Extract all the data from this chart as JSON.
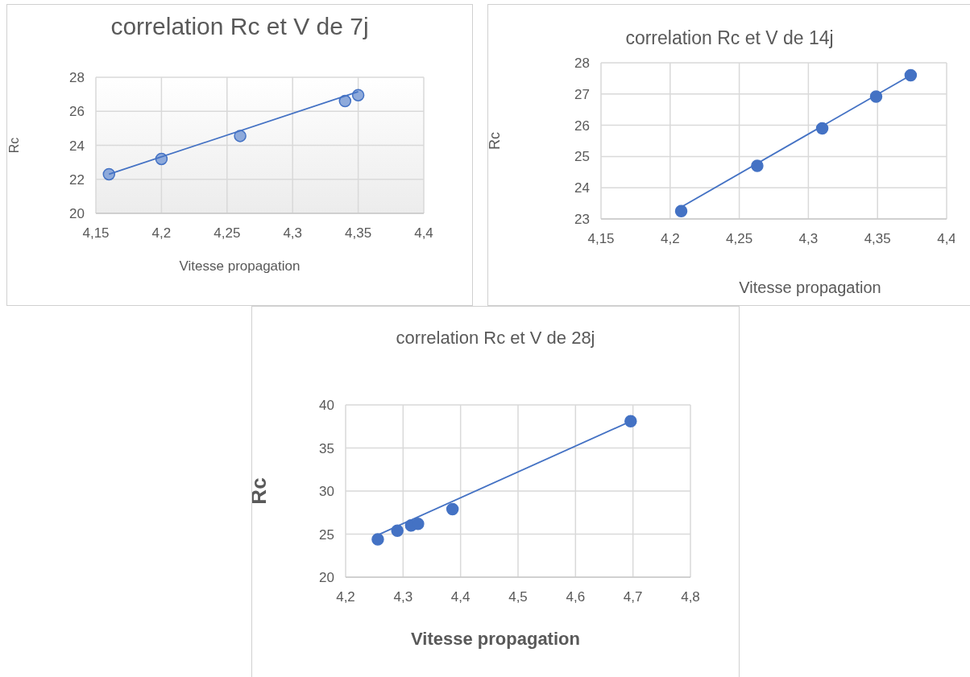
{
  "chart_data": [
    {
      "type": "scatter",
      "title": "correlation Rc et V de 7j",
      "xlabel": "Vitesse propagation",
      "ylabel": "Rc",
      "xlim": [
        4.15,
        4.4
      ],
      "xticks": [
        {
          "value": 4.15,
          "label": "4,15"
        },
        {
          "value": 4.2,
          "label": "4,2"
        },
        {
          "value": 4.25,
          "label": "4,25"
        },
        {
          "value": 4.3,
          "label": "4,3"
        },
        {
          "value": 4.35,
          "label": "4,35"
        },
        {
          "value": 4.4,
          "label": "4,4"
        }
      ],
      "ylim": [
        20,
        28
      ],
      "yticks": [
        20,
        22,
        24,
        26,
        28
      ],
      "grid": true,
      "series": [
        {
          "marker": "circle",
          "color": "#8eaadb",
          "x": [
            4.16,
            4.2,
            4.26,
            4.34,
            4.35
          ],
          "values": [
            22.3,
            23.2,
            24.55,
            26.6,
            26.95
          ]
        },
        {
          "type": "line",
          "marker": "none",
          "color": "#4472c4",
          "x": [
            4.16,
            4.35
          ],
          "values": [
            22.3,
            27.15
          ]
        }
      ]
    },
    {
      "type": "scatter",
      "title": "correlation Rc et V de 14j",
      "xlabel": "Vitesse propagation",
      "ylabel": "Rc",
      "xlim": [
        4.15,
        4.4
      ],
      "xticks": [
        {
          "value": 4.15,
          "label": "4,15"
        },
        {
          "value": 4.2,
          "label": "4,2"
        },
        {
          "value": 4.25,
          "label": "4,25"
        },
        {
          "value": 4.3,
          "label": "4,3"
        },
        {
          "value": 4.35,
          "label": "4,35"
        },
        {
          "value": 4.4,
          "label": "4,4"
        }
      ],
      "ylim": [
        23,
        28
      ],
      "yticks": [
        23,
        24,
        25,
        26,
        27,
        28
      ],
      "grid": true,
      "series": [
        {
          "marker": "circle",
          "color": "#4472c4",
          "x": [
            4.208,
            4.263,
            4.31,
            4.349,
            4.374
          ],
          "values": [
            23.25,
            24.7,
            25.9,
            26.92,
            27.6
          ]
        },
        {
          "type": "line",
          "marker": "none",
          "color": "#4472c4",
          "x": [
            4.208,
            4.374
          ],
          "values": [
            23.38,
            27.6
          ]
        }
      ]
    },
    {
      "type": "scatter",
      "title": "correlation Rc et V de 28j",
      "xlabel": "Vitesse propagation",
      "ylabel": "Rc",
      "xlim": [
        4.2,
        4.8
      ],
      "xticks": [
        {
          "value": 4.2,
          "label": "4,2"
        },
        {
          "value": 4.3,
          "label": "4,3"
        },
        {
          "value": 4.4,
          "label": "4,4"
        },
        {
          "value": 4.5,
          "label": "4,5"
        },
        {
          "value": 4.6,
          "label": "4,6"
        },
        {
          "value": 4.7,
          "label": "4,7"
        },
        {
          "value": 4.8,
          "label": "4,8"
        }
      ],
      "ylim": [
        20,
        40
      ],
      "yticks": [
        20,
        25,
        30,
        35,
        40
      ],
      "grid": true,
      "series": [
        {
          "marker": "circle",
          "color": "#4472c4",
          "x": [
            4.256,
            4.29,
            4.314,
            4.326,
            4.386,
            4.696
          ],
          "values": [
            24.4,
            25.4,
            26,
            26.2,
            27.9,
            38.1
          ]
        },
        {
          "type": "line",
          "marker": "none",
          "color": "#4472c4",
          "x": [
            4.256,
            4.696
          ],
          "values": [
            24.9,
            38.1
          ]
        }
      ]
    }
  ]
}
